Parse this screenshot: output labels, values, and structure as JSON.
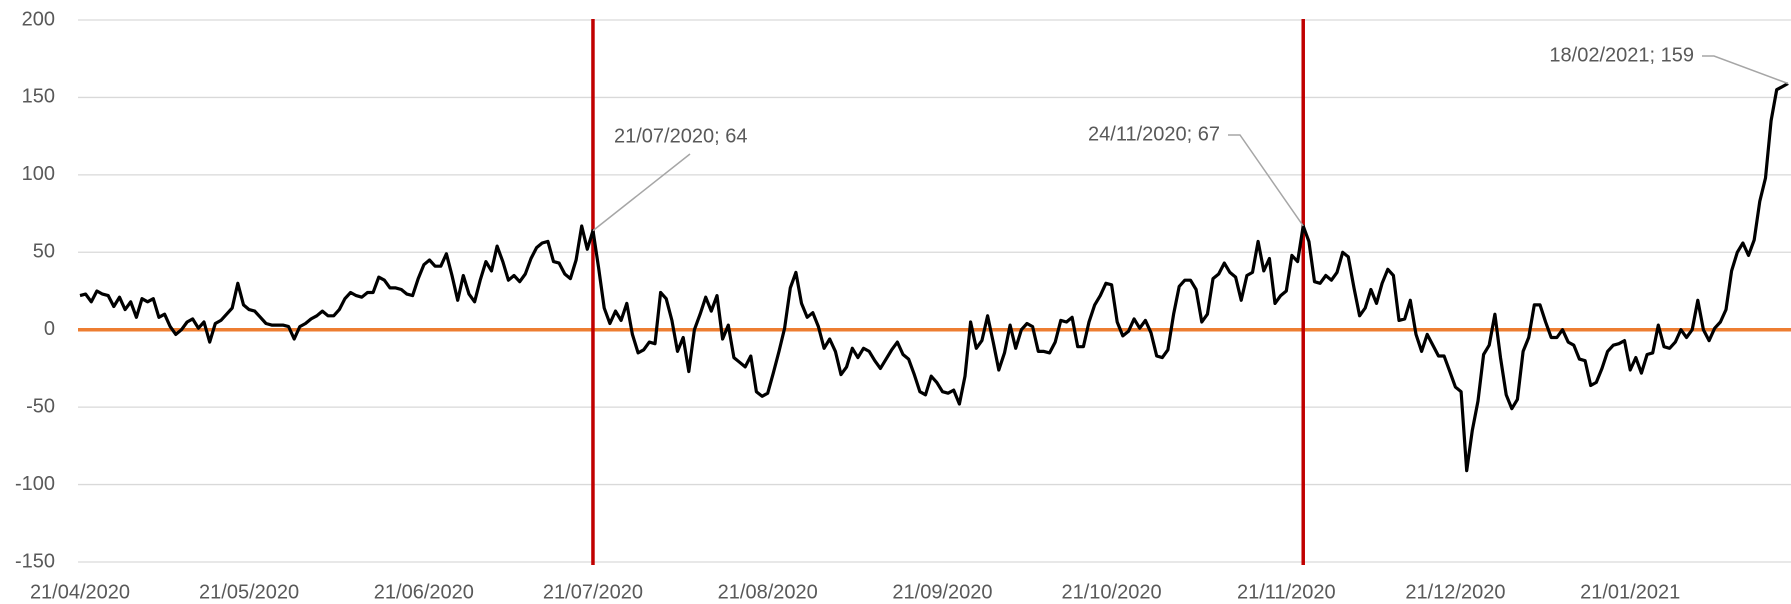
{
  "chart_data": {
    "type": "line",
    "x": [
      "21/04/2020",
      "22/04/2020",
      "23/04/2020",
      "24/04/2020",
      "25/04/2020",
      "26/04/2020",
      "27/04/2020",
      "28/04/2020",
      "29/04/2020",
      "30/04/2020",
      "01/05/2020",
      "02/05/2020",
      "03/05/2020",
      "04/05/2020",
      "05/05/2020",
      "06/05/2020",
      "07/05/2020",
      "08/05/2020",
      "09/05/2020",
      "10/05/2020",
      "11/05/2020",
      "12/05/2020",
      "13/05/2020",
      "14/05/2020",
      "15/05/2020",
      "16/05/2020",
      "17/05/2020",
      "18/05/2020",
      "19/05/2020",
      "20/05/2020",
      "21/05/2020",
      "22/05/2020",
      "23/05/2020",
      "24/05/2020",
      "25/05/2020",
      "26/05/2020",
      "27/05/2020",
      "28/05/2020",
      "29/05/2020",
      "30/05/2020",
      "31/05/2020",
      "01/06/2020",
      "02/06/2020",
      "03/06/2020",
      "04/06/2020",
      "05/06/2020",
      "06/06/2020",
      "07/06/2020",
      "08/06/2020",
      "09/06/2020",
      "10/06/2020",
      "11/06/2020",
      "12/06/2020",
      "13/06/2020",
      "14/06/2020",
      "15/06/2020",
      "16/06/2020",
      "17/06/2020",
      "18/06/2020",
      "19/06/2020",
      "20/06/2020",
      "21/06/2020",
      "22/06/2020",
      "23/06/2020",
      "24/06/2020",
      "25/06/2020",
      "26/06/2020",
      "27/06/2020",
      "28/06/2020",
      "29/06/2020",
      "30/06/2020",
      "01/07/2020",
      "02/07/2020",
      "03/07/2020",
      "04/07/2020",
      "05/07/2020",
      "06/07/2020",
      "07/07/2020",
      "08/07/2020",
      "09/07/2020",
      "10/07/2020",
      "11/07/2020",
      "12/07/2020",
      "13/07/2020",
      "14/07/2020",
      "15/07/2020",
      "16/07/2020",
      "17/07/2020",
      "18/07/2020",
      "19/07/2020",
      "20/07/2020",
      "21/07/2020",
      "22/07/2020",
      "23/07/2020",
      "24/07/2020",
      "25/07/2020",
      "26/07/2020",
      "27/07/2020",
      "28/07/2020",
      "29/07/2020",
      "30/07/2020",
      "31/07/2020",
      "01/08/2020",
      "02/08/2020",
      "03/08/2020",
      "04/08/2020",
      "05/08/2020",
      "06/08/2020",
      "07/08/2020",
      "08/08/2020",
      "09/08/2020",
      "10/08/2020",
      "11/08/2020",
      "12/08/2020",
      "13/08/2020",
      "14/08/2020",
      "15/08/2020",
      "16/08/2020",
      "17/08/2020",
      "18/08/2020",
      "19/08/2020",
      "20/08/2020",
      "21/08/2020",
      "22/08/2020",
      "23/08/2020",
      "24/08/2020",
      "25/08/2020",
      "26/08/2020",
      "27/08/2020",
      "28/08/2020",
      "29/08/2020",
      "30/08/2020",
      "31/08/2020",
      "01/09/2020",
      "02/09/2020",
      "03/09/2020",
      "04/09/2020",
      "05/09/2020",
      "06/09/2020",
      "07/09/2020",
      "08/09/2020",
      "09/09/2020",
      "10/09/2020",
      "11/09/2020",
      "12/09/2020",
      "13/09/2020",
      "14/09/2020",
      "15/09/2020",
      "16/09/2020",
      "17/09/2020",
      "18/09/2020",
      "19/09/2020",
      "20/09/2020",
      "21/09/2020",
      "22/09/2020",
      "23/09/2020",
      "24/09/2020",
      "25/09/2020",
      "26/09/2020",
      "27/09/2020",
      "28/09/2020",
      "29/09/2020",
      "30/09/2020",
      "01/10/2020",
      "02/10/2020",
      "03/10/2020",
      "04/10/2020",
      "05/10/2020",
      "06/10/2020",
      "07/10/2020",
      "08/10/2020",
      "09/10/2020",
      "10/10/2020",
      "11/10/2020",
      "12/10/2020",
      "13/10/2020",
      "14/10/2020",
      "15/10/2020",
      "16/10/2020",
      "17/10/2020",
      "18/10/2020",
      "19/10/2020",
      "20/10/2020",
      "21/10/2020",
      "22/10/2020",
      "23/10/2020",
      "24/10/2020",
      "25/10/2020",
      "26/10/2020",
      "27/10/2020",
      "28/10/2020",
      "29/10/2020",
      "30/10/2020",
      "31/10/2020",
      "01/11/2020",
      "02/11/2020",
      "03/11/2020",
      "04/11/2020",
      "05/11/2020",
      "06/11/2020",
      "07/11/2020",
      "08/11/2020",
      "09/11/2020",
      "10/11/2020",
      "11/11/2020",
      "12/11/2020",
      "13/11/2020",
      "14/11/2020",
      "15/11/2020",
      "16/11/2020",
      "17/11/2020",
      "18/11/2020",
      "19/11/2020",
      "20/11/2020",
      "21/11/2020",
      "22/11/2020",
      "23/11/2020",
      "24/11/2020",
      "25/11/2020",
      "26/11/2020",
      "27/11/2020",
      "28/11/2020",
      "29/11/2020",
      "30/11/2020",
      "01/12/2020",
      "02/12/2020",
      "03/12/2020",
      "04/12/2020",
      "05/12/2020",
      "06/12/2020",
      "07/12/2020",
      "08/12/2020",
      "09/12/2020",
      "10/12/2020",
      "11/12/2020",
      "12/12/2020",
      "13/12/2020",
      "14/12/2020",
      "15/12/2020",
      "16/12/2020",
      "17/12/2020",
      "18/12/2020",
      "19/12/2020",
      "20/12/2020",
      "21/12/2020",
      "22/12/2020",
      "23/12/2020",
      "24/12/2020",
      "25/12/2020",
      "26/12/2020",
      "27/12/2020",
      "28/12/2020",
      "29/12/2020",
      "30/12/2020",
      "31/12/2020",
      "01/01/2021",
      "02/01/2021",
      "03/01/2021",
      "04/01/2021",
      "05/01/2021",
      "06/01/2021",
      "07/01/2021",
      "08/01/2021",
      "09/01/2021",
      "10/01/2021",
      "11/01/2021",
      "12/01/2021",
      "13/01/2021",
      "14/01/2021",
      "15/01/2021",
      "16/01/2021",
      "17/01/2021",
      "18/01/2021",
      "19/01/2021",
      "20/01/2021",
      "21/01/2021",
      "22/01/2021",
      "23/01/2021",
      "24/01/2021",
      "25/01/2021",
      "26/01/2021",
      "27/01/2021",
      "28/01/2021",
      "29/01/2021",
      "30/01/2021",
      "31/01/2021",
      "01/02/2021",
      "02/02/2021",
      "03/02/2021",
      "04/02/2021",
      "05/02/2021",
      "06/02/2021",
      "07/02/2021",
      "08/02/2021",
      "09/02/2021",
      "10/02/2021",
      "11/02/2021",
      "12/02/2021",
      "13/02/2021",
      "14/02/2021",
      "15/02/2021",
      "16/02/2021",
      "17/02/2021",
      "18/02/2021"
    ],
    "values": [
      22,
      23,
      18,
      25,
      23,
      22,
      15,
      21,
      13,
      18,
      8,
      20,
      18,
      20,
      8,
      10,
      2,
      -3,
      0,
      5,
      7,
      1,
      5,
      -8,
      4,
      6,
      10,
      14,
      30,
      16,
      13,
      12,
      8,
      4,
      3,
      3,
      3,
      2,
      -6,
      2,
      4,
      7,
      9,
      12,
      9,
      9,
      13,
      20,
      24,
      22,
      21,
      24,
      24,
      34,
      32,
      27,
      27,
      26,
      23,
      22,
      33,
      42,
      45,
      41,
      41,
      49,
      35,
      19,
      35,
      23,
      18,
      32,
      44,
      38,
      54,
      44,
      32,
      35,
      31,
      36,
      46,
      53,
      56,
      57,
      44,
      43,
      36,
      33,
      45,
      67,
      52,
      64,
      40,
      14,
      4,
      12,
      6,
      17,
      -3,
      -15,
      -13,
      -8,
      -9,
      24,
      20,
      6,
      -14,
      -5,
      -27,
      0,
      10,
      21,
      12,
      22,
      -6,
      3,
      -18,
      -21,
      -24,
      -17,
      -40,
      -43,
      -41,
      -28,
      -14,
      1,
      27,
      37,
      17,
      8,
      11,
      2,
      -12,
      -6,
      -14,
      -29,
      -24,
      -12,
      -18,
      -12,
      -14,
      -20,
      -25,
      -19,
      -13,
      -8,
      -16,
      -19,
      -29,
      -40,
      -42,
      -30,
      -34,
      -40,
      -41,
      -39,
      -48,
      -30,
      5,
      -12,
      -7,
      9,
      -8,
      -26,
      -15,
      3,
      -12,
      0,
      4,
      2,
      -14,
      -14,
      -15,
      -8,
      6,
      5,
      8,
      -11,
      -11,
      5,
      16,
      22,
      30,
      29,
      5,
      -4,
      -1,
      7,
      1,
      6,
      -2,
      -17,
      -18,
      -13,
      10,
      28,
      32,
      32,
      26,
      5,
      10,
      33,
      36,
      43,
      37,
      34,
      19,
      35,
      37,
      57,
      38,
      46,
      17,
      22,
      25,
      48,
      44,
      67,
      57,
      31,
      30,
      35,
      32,
      37,
      50,
      47,
      27,
      9,
      14,
      26,
      17,
      30,
      39,
      35,
      6,
      7,
      19,
      -3,
      -14,
      -3,
      -10,
      -17,
      -17,
      -27,
      -37,
      -40,
      -91,
      -65,
      -46,
      -16,
      -10,
      10,
      -18,
      -42,
      -51,
      -45,
      -14,
      -5,
      16,
      16,
      5,
      -5,
      -5,
      0,
      -8,
      -10,
      -19,
      -20,
      -36,
      -34,
      -25,
      -14,
      -10,
      -9,
      -7,
      -26,
      -18,
      -28,
      -16,
      -15,
      3,
      -11,
      -12,
      -8,
      0,
      -5,
      0,
      19,
      0,
      -7,
      1,
      5,
      13,
      38,
      50,
      56,
      48,
      58,
      83,
      98,
      135,
      155,
      157,
      159
    ],
    "color": "#000000",
    "ylim": [
      -150,
      200
    ],
    "yticks": [
      -150,
      -100,
      -50,
      0,
      50,
      100,
      150,
      200
    ],
    "grid": true,
    "xticks": [
      "21/04/2020",
      "21/05/2020",
      "21/06/2020",
      "21/07/2020",
      "21/08/2020",
      "21/09/2020",
      "21/10/2020",
      "21/11/2020",
      "21/12/2020",
      "21/01/2021"
    ],
    "reference_line": {
      "value": 0,
      "color": "#ed7d31"
    },
    "vlines": {
      "x": [
        "21/07/2020",
        "24/11/2020"
      ],
      "color": "#c00000"
    },
    "annotations": [
      "21/07/2020; 64",
      "24/11/2020; 67",
      "18/02/2021; 159"
    ]
  }
}
